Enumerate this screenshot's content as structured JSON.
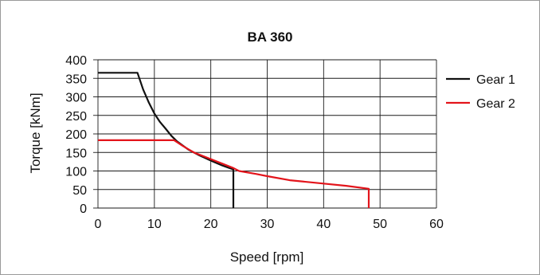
{
  "chart_data": {
    "type": "line",
    "title": "BA 360",
    "xlabel": "Speed [rpm]",
    "ylabel": "Torque [kNm]",
    "xlim": [
      0,
      60
    ],
    "ylim": [
      0,
      400
    ],
    "xticks": [
      0,
      10,
      20,
      30,
      40,
      50,
      60
    ],
    "yticks": [
      0,
      50,
      100,
      150,
      200,
      250,
      300,
      350,
      400
    ],
    "grid": true,
    "legend_position": "right",
    "series": [
      {
        "name": "Gear 1",
        "color": "#111111",
        "x": [
          0,
          7,
          8,
          9,
          10,
          11,
          12,
          13,
          14,
          16,
          18,
          20,
          22,
          24,
          24
        ],
        "y": [
          365,
          365,
          320,
          285,
          255,
          232,
          214,
          195,
          180,
          158,
          142,
          128,
          115,
          104,
          0
        ]
      },
      {
        "name": "Gear 2",
        "color": "#e3141b",
        "x": [
          0,
          13.5,
          15,
          17,
          20,
          22,
          24,
          25,
          28,
          30,
          34,
          40,
          44,
          48,
          48
        ],
        "y": [
          183,
          183,
          168,
          150,
          132,
          120,
          108,
          100,
          92,
          86,
          75,
          66,
          60,
          52,
          0
        ]
      }
    ]
  }
}
